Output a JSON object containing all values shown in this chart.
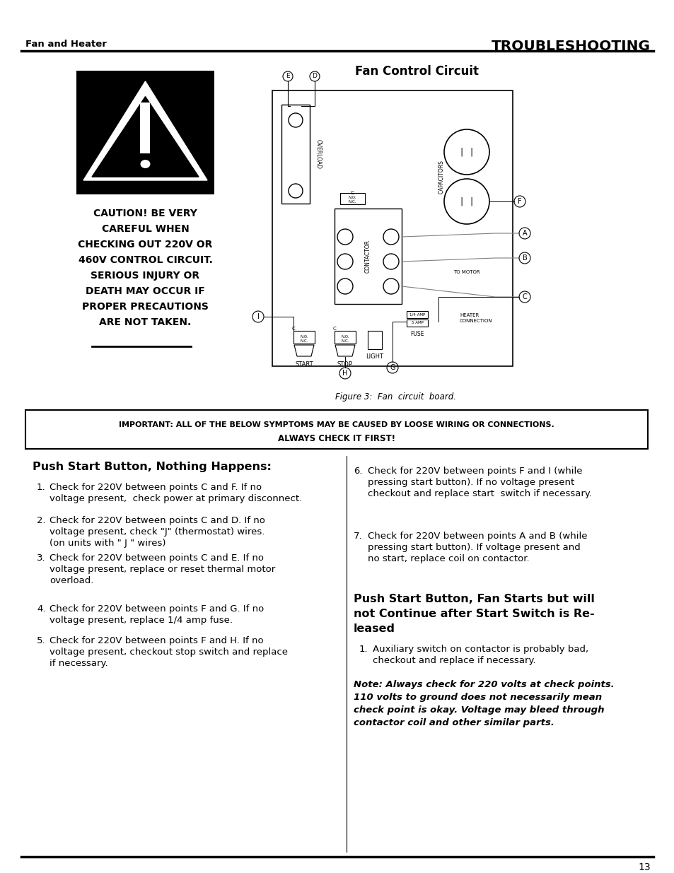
{
  "header_left": "Fan and Heater",
  "header_right": "TROUBLESHOOTING",
  "diagram_title": "Fan Control Circuit",
  "figure_caption": "Figure 3:  Fan  circuit  board.",
  "caution_text": "CAUTION! BE VERY\nCAREFUL WHEN\nCHECKING OUT 220V OR\n460V CONTROL CIRCUIT.\nSERIOUS INJURY OR\nDEATH MAY OCCUR IF\nPROPER PRECAUTIONS\nARE NOT TAKEN.",
  "important_box": "IMPORTANT: ALL OF THE BELOW SYMPTOMS MAY BE CAUSED BY LOOSE WIRING OR CONNECTIONS.\nALWAYS CHECK IT FIRST!",
  "section1_title": "Push Start Button, Nothing Happens:",
  "section1_items": [
    "Check for 220V between points C and F. If no\nvoltage present,  check power at primary disconnect.",
    "Check for 220V between points C and D. If no\nvoltage present, check \"J\" (thermostat) wires.\n(on units with \" J \" wires)",
    "Check for 220V between points C and E. If no\nvoltage present, replace or reset thermal motor\noverload.",
    "Check for 220V between points F and G. If no\nvoltage present, replace 1/4 amp fuse.",
    "Check for 220V between points F and H. If no\nvoltage present, checkout stop switch and replace\nif necessary."
  ],
  "section1_items_right": [
    "Check for 220V between points F and I (while\npressing start button). If no voltage present\ncheckout and replace start  switch if necessary.",
    "Check for 220V between points A and B (while\npressing start button). If voltage present and\nno start, replace coil on contactor."
  ],
  "section1_items_right_nums": [
    "6.",
    "7."
  ],
  "section2_title": "Push Start Button, Fan Starts but will\nnot Continue after Start Switch is Re-\nleased",
  "section2_items": [
    "Auxiliary switch on contactor is probably bad,\ncheckout and replace if necessary."
  ],
  "note_text": "Note: Always check for 220 volts at check points.\n110 volts to ground does not necessarily mean\ncheck point is okay. Voltage may bleed through\ncontactor coil and other similar parts.",
  "page_number": "13"
}
